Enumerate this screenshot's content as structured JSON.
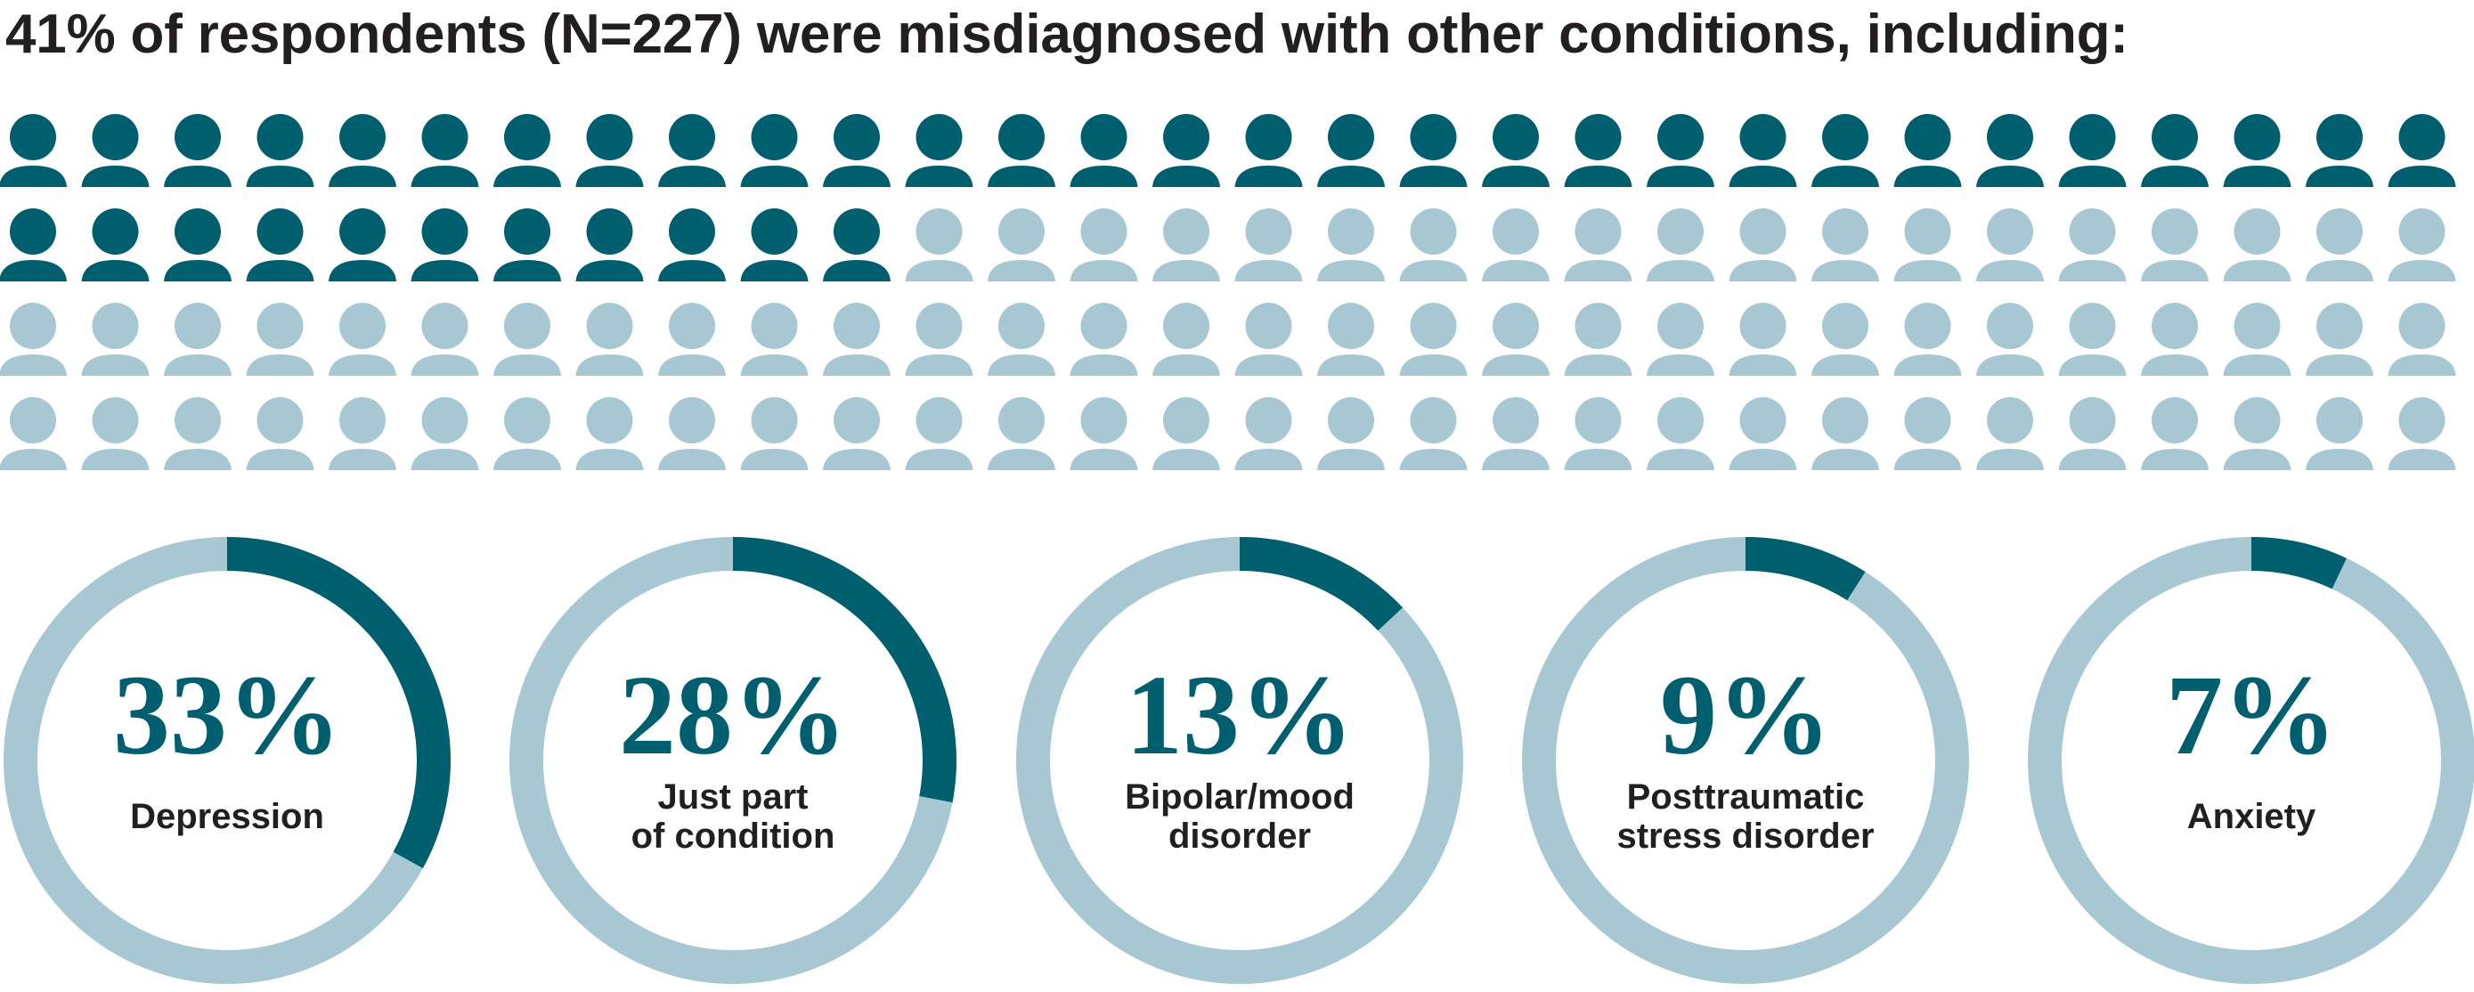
{
  "title": "41% of respondents (N=227) were misdiagnosed with other conditions, including:",
  "colors": {
    "dark": "#005f6e",
    "light": "#a7c7d3",
    "text": "#231f20"
  },
  "chart_data": [
    {
      "type": "pictogram",
      "total_icons": 120,
      "highlighted_icons": 41,
      "value_percent": 41,
      "respondents": 227
    },
    {
      "type": "donut",
      "items": [
        {
          "percent_label": "33%",
          "value": 33,
          "label_lines": [
            "Depression"
          ]
        },
        {
          "percent_label": "28%",
          "value": 28,
          "label_lines": [
            "Just part",
            "of condition"
          ]
        },
        {
          "percent_label": "13%",
          "value": 13,
          "label_lines": [
            "Bipolar/mood",
            "disorder"
          ]
        },
        {
          "percent_label": "9%",
          "value": 9,
          "label_lines": [
            "Posttraumatic",
            "stress disorder"
          ]
        },
        {
          "percent_label": "7%",
          "value": 7,
          "label_lines": [
            "Anxiety"
          ]
        }
      ]
    }
  ]
}
